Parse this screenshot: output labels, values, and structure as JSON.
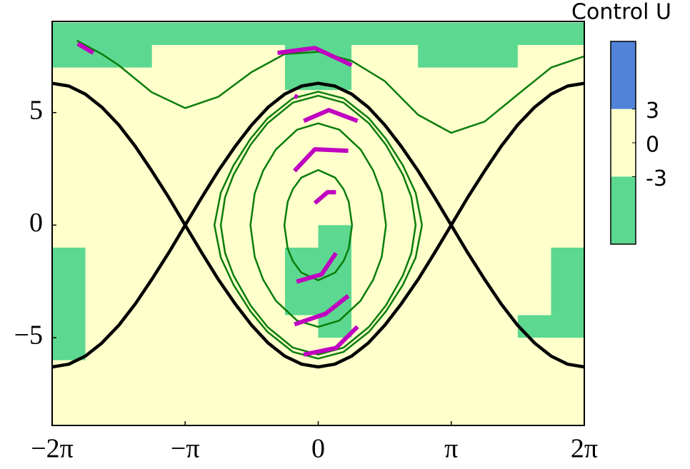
{
  "chart_data": {
    "type": "heatmap",
    "xlim": [
      -6.283,
      6.283
    ],
    "ylim": [
      -8.9,
      9.05
    ],
    "xticks": [
      {
        "value": -6.283,
        "label": "−2π"
      },
      {
        "value": -3.1416,
        "label": "−π"
      },
      0,
      {
        "value": 3.1416,
        "label": "π"
      },
      {
        "value": 6.283,
        "label": "2π"
      }
    ],
    "yticks": [
      {
        "value": -5,
        "label": "−5"
      },
      0,
      5
    ],
    "heatmap": {
      "x_edges": [
        -6.283,
        -5.498,
        -4.712,
        -3.927,
        -3.142,
        -2.356,
        -1.571,
        -0.785,
        0,
        0.785,
        1.571,
        2.356,
        3.142,
        3.927,
        4.712,
        5.498,
        6.283
      ],
      "y_edges": [
        9,
        8,
        7,
        6,
        5,
        4,
        3,
        2,
        1,
        0,
        -1,
        -2,
        -3,
        -4,
        -5,
        -6,
        -7,
        -8,
        -9
      ],
      "values": [
        [
          -3,
          -3,
          -3,
          -3,
          -3,
          -3,
          -3,
          -3,
          -3,
          -3,
          -3,
          -3,
          -3,
          -3,
          -3,
          -3
        ],
        [
          -3,
          -3,
          -3,
          0,
          0,
          0,
          0,
          -3,
          -3,
          0,
          0,
          -3,
          -3,
          -3,
          0,
          0
        ],
        [
          0,
          0,
          0,
          0,
          0,
          0,
          0,
          -3,
          -3,
          0,
          0,
          0,
          0,
          0,
          0,
          0
        ],
        [
          3,
          0,
          0,
          0,
          0,
          0,
          0,
          3,
          3,
          0,
          0,
          0,
          0,
          0,
          0,
          3
        ],
        [
          3,
          0,
          0,
          0,
          0,
          0,
          0,
          3,
          3,
          0,
          0,
          0,
          0,
          0,
          0,
          3
        ],
        [
          3,
          0,
          0,
          0,
          0,
          0,
          0,
          3,
          0,
          0,
          0,
          0,
          0,
          0,
          0,
          3
        ],
        [
          3,
          0,
          0,
          0,
          0,
          0,
          0,
          3,
          0,
          0,
          0,
          0,
          0,
          0,
          0,
          3
        ],
        [
          3,
          0,
          0,
          0,
          0,
          0,
          0,
          3,
          0,
          0,
          0,
          0,
          0,
          0,
          0,
          3
        ],
        [
          0,
          0,
          0,
          0,
          0,
          0,
          0,
          0,
          0,
          0,
          0,
          0,
          0,
          0,
          0,
          0
        ],
        [
          0,
          0,
          0,
          0,
          0,
          0,
          0,
          0,
          -3,
          0,
          0,
          0,
          0,
          0,
          0,
          0
        ],
        [
          -3,
          0,
          0,
          0,
          0,
          0,
          0,
          -3,
          -3,
          0,
          0,
          0,
          0,
          0,
          0,
          -3
        ],
        [
          -3,
          0,
          0,
          0,
          0,
          0,
          0,
          -3,
          -3,
          0,
          0,
          0,
          0,
          0,
          0,
          -3
        ],
        [
          -3,
          0,
          0,
          0,
          0,
          0,
          0,
          -3,
          -3,
          0,
          0,
          0,
          0,
          0,
          0,
          -3
        ],
        [
          -3,
          0,
          0,
          0,
          0,
          0,
          0,
          0,
          -3,
          0,
          0,
          0,
          0,
          0,
          -3,
          -3
        ],
        [
          -3,
          0,
          0,
          0,
          0,
          0,
          0,
          0,
          0,
          0,
          0,
          0,
          0,
          0,
          0,
          0
        ],
        [
          3,
          3,
          0,
          0,
          0,
          0,
          0,
          0,
          0,
          0,
          0,
          0,
          0,
          0,
          0,
          0
        ],
        [
          3,
          3,
          3,
          3,
          3,
          0,
          0,
          0,
          0,
          0,
          0,
          0,
          0,
          0,
          0,
          0
        ],
        [
          3,
          3,
          3,
          3,
          3,
          3,
          3,
          3,
          3,
          3,
          3,
          3,
          3,
          3,
          3,
          3
        ]
      ]
    },
    "colorbar": {
      "label": "Control U",
      "lim": [
        -9,
        9
      ],
      "ticks": [
        3,
        0,
        -3
      ],
      "bounds": [
        -9,
        -3,
        3,
        9
      ],
      "colors": [
        "#5cd890",
        "#ffffcc",
        "#5283d8"
      ]
    },
    "lines": [
      {
        "color": "#000000",
        "width": 4.5,
        "x": [
          -6.28,
          -5.89,
          -5.5,
          -5.11,
          -4.71,
          -4.32,
          -3.93,
          -3.53,
          -3.14,
          -2.75,
          -2.36,
          -1.96,
          -1.57,
          -1.18,
          -0.79,
          -0.39,
          0,
          0.39,
          0.79,
          1.18,
          1.57,
          1.96,
          2.36,
          2.75,
          3.14,
          3.53,
          3.93,
          4.32,
          4.71,
          5.11,
          5.5,
          5.89,
          6.28
        ],
        "y": [
          -6.3,
          -6.18,
          -5.82,
          -5.24,
          -4.45,
          -3.5,
          -2.41,
          -1.23,
          0,
          1.23,
          2.41,
          3.5,
          4.45,
          5.24,
          5.82,
          6.18,
          6.3,
          6.18,
          5.82,
          5.24,
          4.45,
          3.5,
          2.41,
          1.23,
          0,
          -1.23,
          -2.41,
          -3.5,
          -4.45,
          -5.24,
          -5.82,
          -6.18,
          -6.3
        ]
      },
      {
        "color": "#000000",
        "width": 4.5,
        "x": [
          -6.28,
          -5.89,
          -5.5,
          -5.11,
          -4.71,
          -4.32,
          -3.93,
          -3.53,
          -3.14,
          -2.75,
          -2.36,
          -1.96,
          -1.57,
          -1.18,
          -0.79,
          -0.39,
          0,
          0.39,
          0.79,
          1.18,
          1.57,
          1.96,
          2.36,
          2.75,
          3.14,
          3.53,
          3.93,
          4.32,
          4.71,
          5.11,
          5.5,
          5.89,
          6.28
        ],
        "y": [
          6.3,
          6.18,
          5.82,
          5.24,
          4.45,
          3.5,
          2.41,
          1.23,
          0,
          -1.23,
          -2.41,
          -3.5,
          -4.45,
          -5.24,
          -5.82,
          -6.18,
          -6.3,
          -6.18,
          -5.82,
          -5.24,
          -4.45,
          -3.5,
          -2.41,
          -1.23,
          0,
          1.23,
          2.41,
          3.5,
          4.45,
          5.24,
          5.82,
          6.18,
          6.3
        ]
      },
      {
        "color": "#0a7d0a",
        "width": 2.5,
        "x": [
          -5.7,
          -5.11,
          -4.71,
          -3.93,
          -3.14,
          -2.36,
          -1.57,
          -0.79,
          0,
          0.79,
          1.57,
          2.36,
          3.14,
          3.93,
          4.71,
          5.5,
          6.28
        ],
        "y": [
          8.2,
          7.6,
          7.1,
          5.9,
          5.2,
          5.7,
          6.8,
          7.6,
          7.7,
          7.3,
          6.4,
          4.9,
          4.1,
          4.6,
          5.8,
          7.0,
          7.5
        ]
      },
      {
        "color": "#0a7d0a",
        "width": 2.5,
        "x": [
          2.45,
          2.3,
          2.0,
          1.6,
          1.2,
          0.6,
          0,
          -0.6,
          -1.2,
          -1.6,
          -2.0,
          -2.3,
          -2.45,
          -2.3,
          -2.0,
          -1.6,
          -1.2,
          -0.6,
          0,
          0.6,
          1.2,
          1.6,
          2.0,
          2.3,
          2.45
        ],
        "y": [
          0,
          1.44,
          2.65,
          3.83,
          4.74,
          5.63,
          5.93,
          5.63,
          4.74,
          3.83,
          2.65,
          1.44,
          0,
          -1.44,
          -2.65,
          -3.83,
          -4.74,
          -5.63,
          -5.93,
          -5.63,
          -4.74,
          -3.83,
          -2.65,
          -1.44,
          0
        ]
      },
      {
        "color": "#0a7d0a",
        "width": 2.5,
        "x": [
          2.3,
          2.2,
          2.0,
          1.6,
          1.2,
          0.6,
          0,
          -0.6,
          -1.2,
          -1.6,
          -2.0,
          -2.2,
          -2.3,
          -2.2,
          -2.0,
          -1.6,
          -1.2,
          -0.6,
          0,
          0.6,
          1.2,
          1.6,
          2.0,
          2.2,
          2.3
        ],
        "y": [
          0,
          1.24,
          2.23,
          3.56,
          4.52,
          5.44,
          5.75,
          5.44,
          4.52,
          3.56,
          2.23,
          1.24,
          0,
          -1.24,
          -2.23,
          -3.56,
          -4.52,
          -5.44,
          -5.75,
          -5.44,
          -4.52,
          -3.56,
          -2.23,
          -1.24,
          0
        ]
      },
      {
        "color": "#0a7d0a",
        "width": 2.5,
        "x": [
          1.6,
          1.5,
          1.3,
          1.0,
          0.5,
          0,
          -0.5,
          -1.0,
          -1.3,
          -1.5,
          -1.6,
          -1.5,
          -1.3,
          -1.0,
          -0.5,
          0,
          0.5,
          1.0,
          1.3,
          1.5,
          1.6
        ],
        "y": [
          0,
          1.41,
          2.42,
          3.36,
          4.24,
          4.52,
          4.24,
          3.36,
          2.42,
          1.41,
          0,
          -1.41,
          -2.42,
          -3.36,
          -4.24,
          -4.52,
          -4.24,
          -3.36,
          -2.42,
          -1.41,
          0
        ]
      },
      {
        "color": "#0a7d0a",
        "width": 2.5,
        "x": [
          0.8,
          0.72,
          0.6,
          0.4,
          0,
          -0.4,
          -0.6,
          -0.72,
          -0.8,
          -0.72,
          -0.6,
          -0.4,
          0,
          0.4,
          0.6,
          0.72,
          0.8
        ],
        "y": [
          0,
          1.04,
          1.59,
          2.11,
          2.45,
          2.11,
          1.59,
          1.04,
          0,
          -1.04,
          -1.59,
          -2.11,
          -2.45,
          -2.11,
          -1.59,
          -1.04,
          0
        ]
      },
      {
        "color": "#c000c0",
        "width": 6,
        "x": [
          -5.68,
          -5.31
        ],
        "y": [
          8.06,
          7.65
        ]
      },
      {
        "color": "#c000c0",
        "width": 6,
        "x": [
          -0.96,
          -0.08,
          0.79
        ],
        "y": [
          7.65,
          7.87,
          7.11
        ]
      },
      {
        "color": "#c000c0",
        "width": 6,
        "x": [
          -0.56,
          -0.49
        ],
        "y": [
          5.75,
          5.68
        ]
      },
      {
        "color": "#c000c0",
        "width": 6,
        "x": [
          -0.34,
          0.25,
          0.93
        ],
        "y": [
          4.63,
          5.11,
          4.63
        ]
      },
      {
        "color": "#c000c0",
        "width": 6,
        "x": [
          -0.56,
          -0.08,
          0.71
        ],
        "y": [
          2.41,
          3.37,
          3.3
        ]
      },
      {
        "color": "#c000c0",
        "width": 6,
        "x": [
          -0.08,
          0.22,
          0.42
        ],
        "y": [
          0.98,
          1.46,
          1.46
        ]
      },
      {
        "color": "#c000c0",
        "width": 6,
        "x": [
          -0.51,
          0.08,
          0.42
        ],
        "y": [
          -2.51,
          -2.19,
          -1.24
        ]
      },
      {
        "color": "#c000c0",
        "width": 6,
        "x": [
          -0.56,
          0.17,
          0.71
        ],
        "y": [
          -4.41,
          -3.94,
          -3.14
        ]
      },
      {
        "color": "#c000c0",
        "width": 6,
        "x": [
          -0.34,
          0.42,
          0.93
        ],
        "y": [
          -5.75,
          -5.46,
          -4.51
        ]
      }
    ]
  }
}
